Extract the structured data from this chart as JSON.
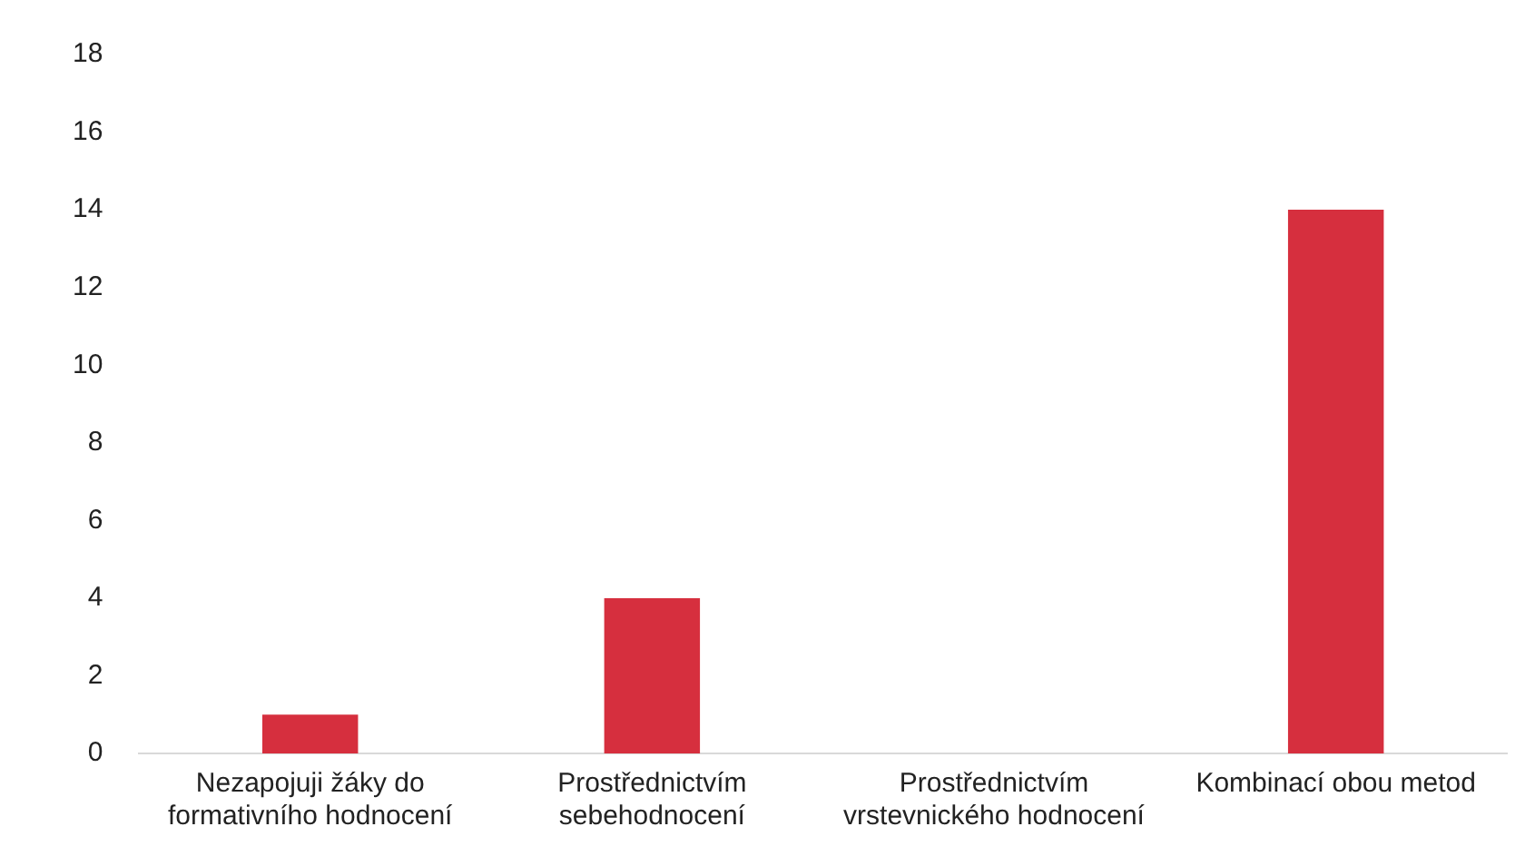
{
  "chart_data": {
    "type": "bar",
    "categories": [
      "Nezapojuji žáky do formativního hodnocení",
      "Prostřednictvím sebehodnocení",
      "Prostřednictvím vrstevnického hodnocení",
      "Kombinací obou metod"
    ],
    "values": [
      1,
      4,
      0,
      14
    ],
    "color": "#d62f3e",
    "ylim": [
      0,
      18
    ],
    "yticks": [
      0,
      2,
      4,
      6,
      8,
      10,
      12,
      14,
      16,
      18
    ],
    "grid": false,
    "legend": false
  }
}
